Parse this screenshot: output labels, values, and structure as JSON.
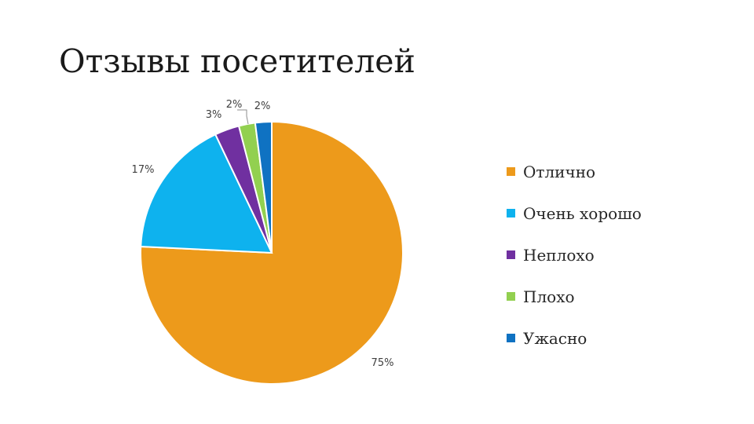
{
  "slide": {
    "title": "Отзывы посетителей"
  },
  "chart_data": {
    "type": "pie",
    "title": "",
    "start_angle_deg": 0,
    "direction": "clockwise",
    "legend_position": "right",
    "categories": [
      "Отлично",
      "Очень хорошо",
      "Неплохо",
      "Плохо",
      "Ужасно"
    ],
    "values": [
      75,
      17,
      3,
      2,
      2
    ],
    "labels": [
      "75%",
      "17%",
      "3%",
      "2%",
      "2%"
    ],
    "colors": [
      "#ED9A1B",
      "#0EB2EE",
      "#7030A0",
      "#92D050",
      "#0F72C2"
    ]
  }
}
